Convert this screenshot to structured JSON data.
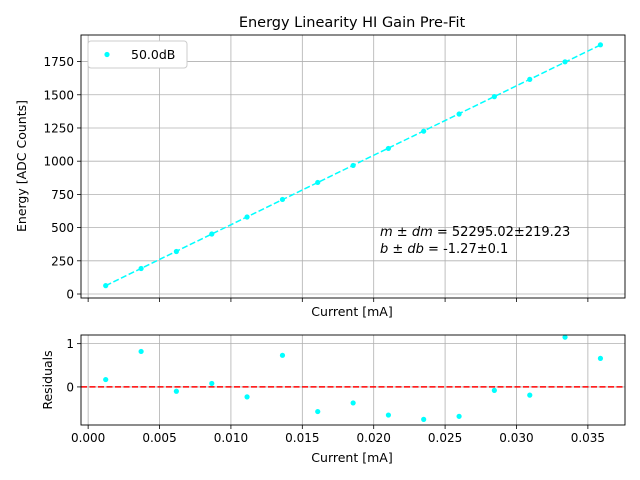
{
  "chart_data": [
    {
      "type": "scatter",
      "title": "Energy Linearity HI Gain Pre-Fit",
      "xlabel": "Current [mA]",
      "ylabel": "Energy [ADC Counts]",
      "xlim": [
        -0.0005,
        0.0376
      ],
      "ylim": [
        -30,
        1950
      ],
      "xticks": [
        0.0,
        0.005,
        0.01,
        0.015,
        0.02,
        0.025,
        0.03,
        0.035
      ],
      "yticks": [
        0,
        250,
        500,
        750,
        1000,
        1250,
        1500,
        1750
      ],
      "ytick_labels": [
        "0",
        "250",
        "500",
        "750",
        "1000",
        "1250",
        "1500",
        "1750"
      ],
      "grid": true,
      "legend_position": "top-left",
      "series": [
        {
          "name": "50.0dB",
          "color": "#00ffff",
          "marker": "dot",
          "x": [
            0.00123,
            0.00371,
            0.00618,
            0.00866,
            0.01113,
            0.01361,
            0.01608,
            0.01856,
            0.02103,
            0.0235,
            0.02598,
            0.02845,
            0.03093,
            0.0334,
            0.03588
          ],
          "y": [
            63,
            192,
            320,
            452,
            580,
            712,
            840,
            968,
            1096,
            1226,
            1355,
            1486,
            1616,
            1748,
            1876
          ]
        }
      ],
      "fit_line": {
        "color": "#00ffff",
        "style": "dashed",
        "slope": 52295.02,
        "intercept": -1.27
      },
      "annotations": [
        {
          "math": "m ± dm",
          "value": " = 52295.02±219.23"
        },
        {
          "math": "b ± db",
          "value": " = -1.27±0.1"
        }
      ]
    },
    {
      "type": "scatter",
      "title": "",
      "xlabel": "Current [mA]",
      "ylabel": "Residuals",
      "xlim": [
        -0.0005,
        0.0376
      ],
      "ylim": [
        -0.88,
        1.2
      ],
      "xticks": [
        0.0,
        0.005,
        0.01,
        0.015,
        0.02,
        0.025,
        0.03,
        0.035
      ],
      "xtick_labels": [
        "0.000",
        "0.005",
        "0.010",
        "0.015",
        "0.020",
        "0.025",
        "0.030",
        "0.035"
      ],
      "yticks": [
        0,
        1
      ],
      "ytick_labels": [
        "0",
        "1"
      ],
      "grid": true,
      "series": [
        {
          "color": "#00ffff",
          "marker": "dot",
          "x": [
            0.00123,
            0.00371,
            0.00618,
            0.00866,
            0.01113,
            0.01361,
            0.01608,
            0.01856,
            0.02103,
            0.0235,
            0.02598,
            0.02845,
            0.03093,
            0.0334,
            0.03588
          ],
          "y": [
            0.17,
            0.82,
            -0.1,
            0.08,
            -0.23,
            0.73,
            -0.57,
            -0.37,
            -0.65,
            -0.75,
            -0.68,
            -0.08,
            -0.19,
            1.15,
            0.66
          ]
        }
      ],
      "reference_line": {
        "y": 0,
        "color": "#ff0000",
        "style": "dashed"
      }
    }
  ]
}
